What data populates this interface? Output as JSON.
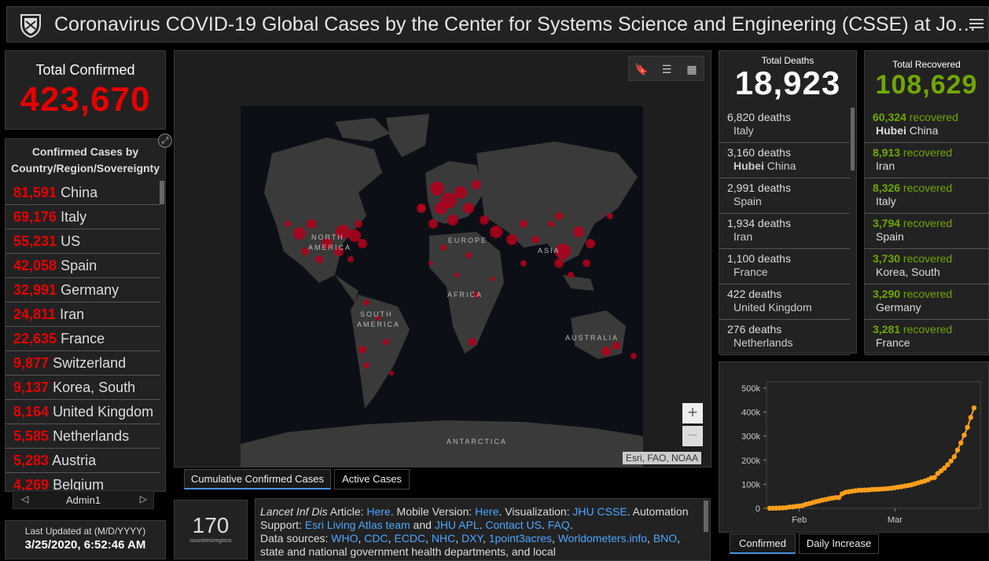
{
  "header": {
    "title": "Coronavirus COVID-19 Global Cases by the Center for Systems Science and Engineering (CSSE) at Jo…"
  },
  "total_confirmed": {
    "label": "Total Confirmed",
    "value": "423,670"
  },
  "country_panel": {
    "title": "Confirmed Cases by Country/Region/Sovereignty",
    "items": [
      {
        "count": "81,591",
        "name": "China"
      },
      {
        "count": "69,176",
        "name": "Italy"
      },
      {
        "count": "55,231",
        "name": "US"
      },
      {
        "count": "42,058",
        "name": "Spain"
      },
      {
        "count": "32,991",
        "name": "Germany"
      },
      {
        "count": "24,811",
        "name": "Iran"
      },
      {
        "count": "22,635",
        "name": "France"
      },
      {
        "count": "9,877",
        "name": "Switzerland"
      },
      {
        "count": "9,137",
        "name": "Korea, South"
      },
      {
        "count": "8,164",
        "name": "United Kingdom"
      },
      {
        "count": "5,585",
        "name": "Netherlands"
      },
      {
        "count": "5,283",
        "name": "Austria"
      },
      {
        "count": "4,269",
        "name": "Belgium"
      }
    ]
  },
  "admin_bar": {
    "label": "Admin1"
  },
  "last_updated": {
    "label": "Last Updated at (M/D/YYYY)",
    "value": "3/25/2020, 6:52:46 AM"
  },
  "map": {
    "labels": [
      "NORTH",
      "AMERICA",
      "EUROPE",
      "ASIA",
      "AFRICA",
      "SOUTH",
      "AMERICA",
      "AUSTRALIA",
      "ANTARCTICA"
    ],
    "attribution": "Esri, FAO, NOAA",
    "tabs": [
      "Cumulative Confirmed Cases",
      "Active Cases"
    ]
  },
  "countries_count": {
    "value": "170",
    "label": "countries/regions"
  },
  "info": {
    "p1_article": "Lancet Inf Dis",
    "p1_article_rest": " Article: ",
    "l_here1": "Here",
    "t_mobile": ". Mobile Version: ",
    "l_here2": "Here",
    "t_vis": ". Visualization: ",
    "l_jhu": "JHU CSSE",
    "t_auto": ". Automation Support: ",
    "l_esri": "Esri Living Atlas team",
    "t_and": " and ",
    "l_apl": "JHU APL",
    "t_dot": ". ",
    "l_contact": "Contact US",
    "t_dot2": ". ",
    "l_faq": "FAQ",
    "t_dot3": ".",
    "t_sources": "Data sources: ",
    "l_who": "WHO",
    "l_cdc": "CDC",
    "l_ecdc": "ECDC",
    "l_nhc": "NHC",
    "l_dxy": "DXY",
    "l_1p3a": "1point3acres",
    "l_wm": "Worldometers.info",
    "l_bno": "BNO",
    "t_rest": ", state and national government health departments, and local",
    "sep": ", "
  },
  "deaths": {
    "label": "Total Deaths",
    "value": "18,923",
    "items": [
      {
        "l1": "6,820 deaths",
        "l2": "Italy",
        "bold": ""
      },
      {
        "l1": "3,160 deaths",
        "l2": " China",
        "bold": "Hubei"
      },
      {
        "l1": "2,991 deaths",
        "l2": "Spain",
        "bold": ""
      },
      {
        "l1": "1,934 deaths",
        "l2": "Iran",
        "bold": ""
      },
      {
        "l1": "1,100 deaths",
        "l2": "France",
        "bold": ""
      },
      {
        "l1": "422 deaths",
        "l2": "United Kingdom",
        "bold": ""
      },
      {
        "l1": "276 deaths",
        "l2": "Netherlands",
        "bold": ""
      }
    ]
  },
  "recovered": {
    "label": "Total Recovered",
    "value": "108,629",
    "items": [
      {
        "n": "60,324",
        "t": " recovered",
        "bold": "Hubei",
        "l2": " China"
      },
      {
        "n": "8,913",
        "t": " recovered",
        "bold": "",
        "l2": "Iran"
      },
      {
        "n": "8,326",
        "t": " recovered",
        "bold": "",
        "l2": "Italy"
      },
      {
        "n": "3,794",
        "t": " recovered",
        "bold": "",
        "l2": "Spain"
      },
      {
        "n": "3,730",
        "t": " recovered",
        "bold": "",
        "l2": "Korea, South"
      },
      {
        "n": "3,290",
        "t": " recovered",
        "bold": "",
        "l2": "Germany"
      },
      {
        "n": "3,281",
        "t": " recovered",
        "bold": "",
        "l2": "France"
      }
    ]
  },
  "chart_tabs": [
    "Confirmed",
    "Daily Increase"
  ],
  "colors": {
    "confirmed": "#e60000",
    "recovered": "#70a800",
    "chart_line": "#ff9f1c",
    "link": "#4da6ff"
  },
  "chart_data": {
    "type": "line",
    "title": "",
    "xlabel": "",
    "ylabel": "",
    "x_ticks": [
      "Feb",
      "Mar"
    ],
    "y_ticks": [
      "0",
      "100k",
      "200k",
      "300k",
      "400k",
      "500k"
    ],
    "ylim": [
      0,
      500000
    ],
    "series": [
      {
        "values": [
          555,
          654,
          941,
          1434,
          2118,
          2927,
          5578,
          6166,
          8234,
          9927,
          12038,
          16787,
          19881,
          23892,
          27635,
          30817,
          34391,
          37120,
          40150,
          42762,
          44802,
          45221,
          60368,
          66885,
          69030,
          71224,
          73258,
          75136,
          75639,
          76197,
          76819,
          78572,
          78958,
          79561,
          80406,
          81388,
          82746,
          84112,
          86011,
          88369,
          90306,
          92840,
          95120,
          97886,
          101801,
          105847,
          109821,
          113590,
          118620,
          125875,
          128352,
          145205,
          156101,
          167454,
          181574,
          197102,
          214821,
          242570,
          272208,
          304507,
          336953,
          378235,
          418045
        ]
      }
    ]
  }
}
